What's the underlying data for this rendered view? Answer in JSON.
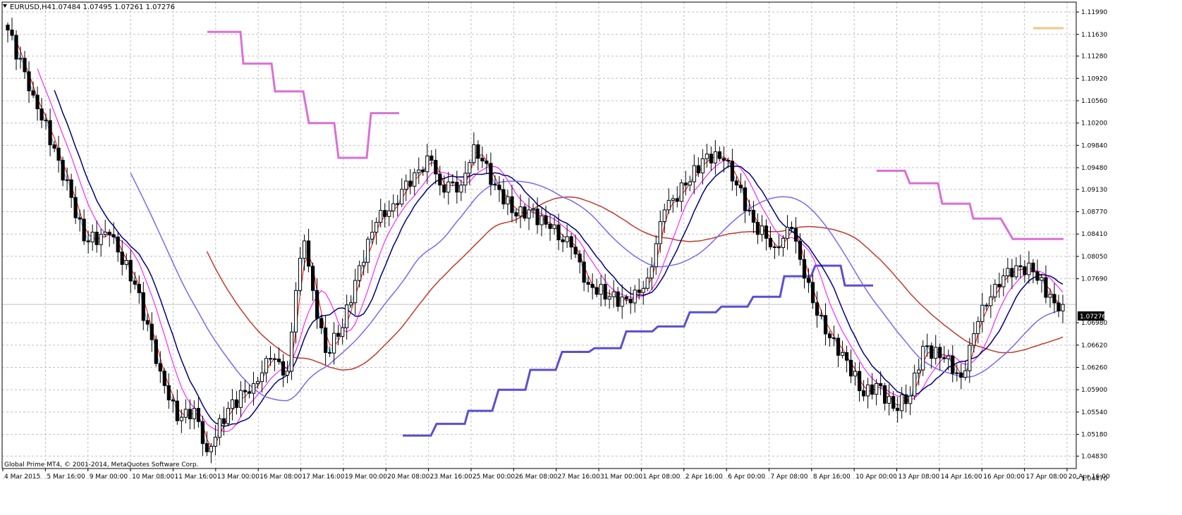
{
  "header": {
    "symbol": "EURUSD,H4",
    "ohlc": "1.07484 1.07495 1.07261 1.07276",
    "arrow_icon": "triangle-down-icon"
  },
  "footer": {
    "copyright": "Global Prime MT4, © 2001-2014, MetaQuotes Software Corp."
  },
  "colors": {
    "background": "#ffffff",
    "grid": "#c0c0c0",
    "candle_body": "#000000",
    "ma_fast": "#ff0000",
    "ma_slow": "#c0392b",
    "ma_magenta": "#ff00ff",
    "ma_navy": "#000080",
    "ma_slateblue": "#7b68ee",
    "ma_cyan": "#40c0ff",
    "step_violet": "#da70d6",
    "step_blue": "#5a4fcf",
    "step_tan": "#f5c38a",
    "bid_line": "#c0c0c0",
    "bid_label_bg": "#000000"
  },
  "chart_data": {
    "type": "candlestick",
    "symbol": "EURUSD",
    "timeframe": "H4",
    "ylim": [
      1.0463,
      1.1215
    ],
    "y_ticks": [
      "1.11990",
      "1.11630",
      "1.11280",
      "1.10920",
      "1.10560",
      "1.10200",
      "1.09840",
      "1.09480",
      "1.09130",
      "1.08770",
      "1.08410",
      "1.08050",
      "1.07690",
      "1.06980",
      "1.06620",
      "1.06260",
      "1.05900",
      "1.05540",
      "1.05180",
      "1.04830",
      "1.04470"
    ],
    "current_price_label": "1.07276",
    "current_price": 1.07276,
    "x_tick_labels": [
      "4 Mar 2015",
      "5 Mar 16:00",
      "9 Mar 00:00",
      "10 Mar 08:00",
      "11 Mar 16:00",
      "13 Mar 00:00",
      "16 Mar 08:00",
      "17 Mar 16:00",
      "19 Mar 00:00",
      "20 Mar 08:00",
      "23 Mar 16:00",
      "25 Mar 00:00",
      "26 Mar 08:00",
      "27 Mar 16:00",
      "31 Mar 00:00",
      "1 Apr 08:00",
      "2 Apr 16:00",
      "6 Apr 00:00",
      "7 Apr 08:00",
      "8 Apr 16:00",
      "10 Apr 00:00",
      "13 Apr 08:00",
      "14 Apr 16:00",
      "16 Apr 00:00",
      "17 Apr 08:00",
      "20 Apr 16:00"
    ],
    "anchor_closes": [
      [
        0,
        1.117
      ],
      [
        6,
        1.1065
      ],
      [
        12,
        1.096
      ],
      [
        15,
        1.09
      ],
      [
        18,
        1.083
      ],
      [
        24,
        1.084
      ],
      [
        30,
        1.076
      ],
      [
        36,
        1.062
      ],
      [
        40,
        1.054
      ],
      [
        44,
        1.056
      ],
      [
        47,
        1.049
      ],
      [
        52,
        1.056
      ],
      [
        58,
        1.06
      ],
      [
        62,
        1.064
      ],
      [
        66,
        1.062
      ],
      [
        68,
        1.075
      ],
      [
        70,
        1.083
      ],
      [
        72,
        1.075
      ],
      [
        75,
        1.065
      ],
      [
        79,
        1.069
      ],
      [
        83,
        1.079
      ],
      [
        87,
        1.086
      ],
      [
        91,
        1.089
      ],
      [
        96,
        1.094
      ],
      [
        100,
        1.096
      ],
      [
        102,
        1.092
      ],
      [
        107,
        1.092
      ],
      [
        110,
        1.0985
      ],
      [
        115,
        1.092
      ],
      [
        120,
        1.087
      ],
      [
        123,
        1.088
      ],
      [
        128,
        1.085
      ],
      [
        133,
        1.082
      ],
      [
        137,
        1.076
      ],
      [
        142,
        1.074
      ],
      [
        147,
        1.073
      ],
      [
        151,
        1.077
      ],
      [
        155,
        1.088
      ],
      [
        160,
        1.092
      ],
      [
        165,
        1.097
      ],
      [
        169,
        1.096
      ],
      [
        172,
        1.092
      ],
      [
        176,
        1.086
      ],
      [
        181,
        1.082
      ],
      [
        185,
        1.085
      ],
      [
        188,
        1.077
      ],
      [
        193,
        1.068
      ],
      [
        197,
        1.065
      ],
      [
        202,
        1.058
      ],
      [
        205,
        1.06
      ],
      [
        209,
        1.056
      ],
      [
        213,
        1.058
      ],
      [
        216,
        1.066
      ],
      [
        221,
        1.064
      ],
      [
        225,
        1.061
      ],
      [
        229,
        1.07
      ],
      [
        233,
        1.076
      ],
      [
        238,
        1.079
      ],
      [
        242,
        1.078
      ],
      [
        247,
        1.073
      ],
      [
        249,
        1.07276
      ]
    ],
    "moving_averages": [
      {
        "color": "ma_slow",
        "period": 48
      },
      {
        "color": "ma_fast",
        "period": 3
      },
      {
        "color": "ma_magenta",
        "period": 8
      },
      {
        "color": "ma_cyan",
        "period": 2
      },
      {
        "color": "ma_navy",
        "period": 12
      },
      {
        "color": "ma_slateblue",
        "period": 30
      }
    ],
    "step_lines": [
      {
        "name": "",
        "color": "step_violet",
        "points": [
          [
            1.1215,
            1.1167,
            1.1167,
            1.1116,
            1.1116,
            1.1071,
            1.1071,
            1.102,
            1.102,
            1.0964,
            1.0964,
            1.1036
          ]
        ],
        "segments": [
          [
            294,
            341,
            1.1167
          ],
          [
            345,
            385,
            1.1116
          ],
          [
            390,
            430,
            1.1071
          ],
          [
            438,
            474,
            1.102
          ],
          [
            480,
            520,
            1.0964
          ],
          [
            526,
            566,
            1.1036
          ]
        ]
      },
      {
        "name": "",
        "color": "step_violet",
        "segments": [
          [
            1243,
            1283,
            1.0943
          ],
          [
            1290,
            1330,
            1.0923
          ],
          [
            1336,
            1375,
            1.089
          ],
          [
            1380,
            1419,
            1.0866
          ],
          [
            1436,
            1508,
            1.0833
          ]
        ]
      },
      {
        "name": "",
        "color": "step_blue",
        "segments": [
          [
            571,
            611,
            1.0516
          ],
          [
            619,
            659,
            1.0535
          ],
          [
            664,
            698,
            1.0556
          ],
          [
            707,
            745,
            1.059
          ],
          [
            752,
            788,
            1.0622
          ],
          [
            797,
            835,
            1.0651
          ],
          [
            843,
            880,
            1.0657
          ],
          [
            888,
            925,
            1.0684
          ],
          [
            933,
            970,
            1.0692
          ],
          [
            978,
            1015,
            1.0715
          ],
          [
            1023,
            1060,
            1.0724
          ],
          [
            1068,
            1106,
            1.074
          ],
          [
            1112,
            1150,
            1.0773
          ],
          [
            1156,
            1192,
            1.079
          ],
          [
            1198,
            1238,
            1.0758
          ]
        ]
      },
      {
        "name": "",
        "color": "step_tan",
        "segments": [
          [
            1465,
            1508,
            1.1173
          ]
        ]
      }
    ]
  }
}
